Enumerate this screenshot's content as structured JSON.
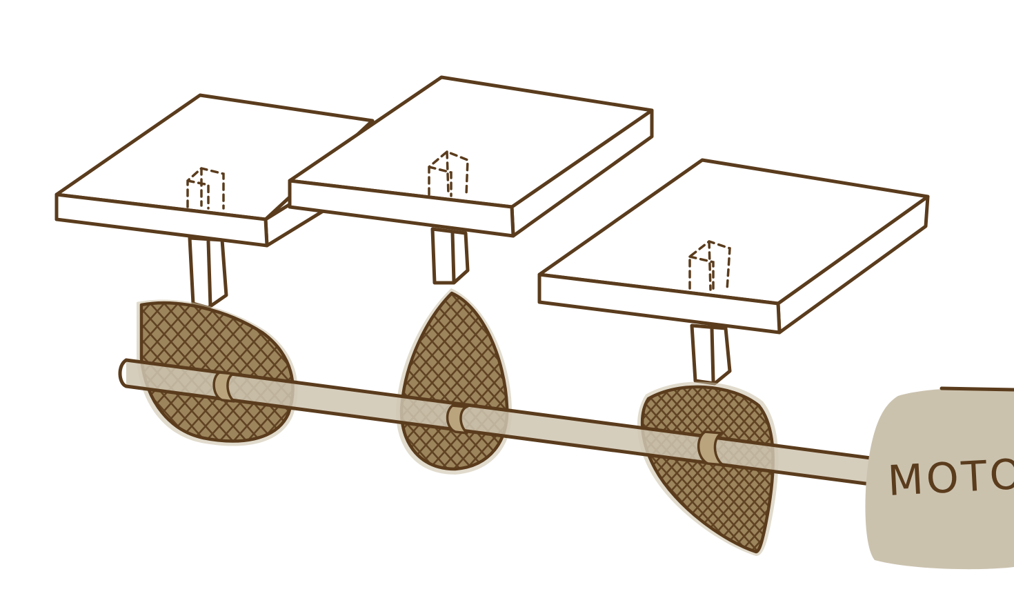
{
  "diagram": {
    "motor_label": "MOTOR"
  },
  "colors": {
    "ink": "#5a3c1d",
    "shaft": "#cfc6b2",
    "cam_fill": "#9c855d",
    "cam_halo": "#c9bea4",
    "motor_fill": "#cbc2ae",
    "paper": "#ffffff"
  },
  "parts": {
    "platforms": 3,
    "cams": 3,
    "shaft": 1,
    "motor": 1
  }
}
